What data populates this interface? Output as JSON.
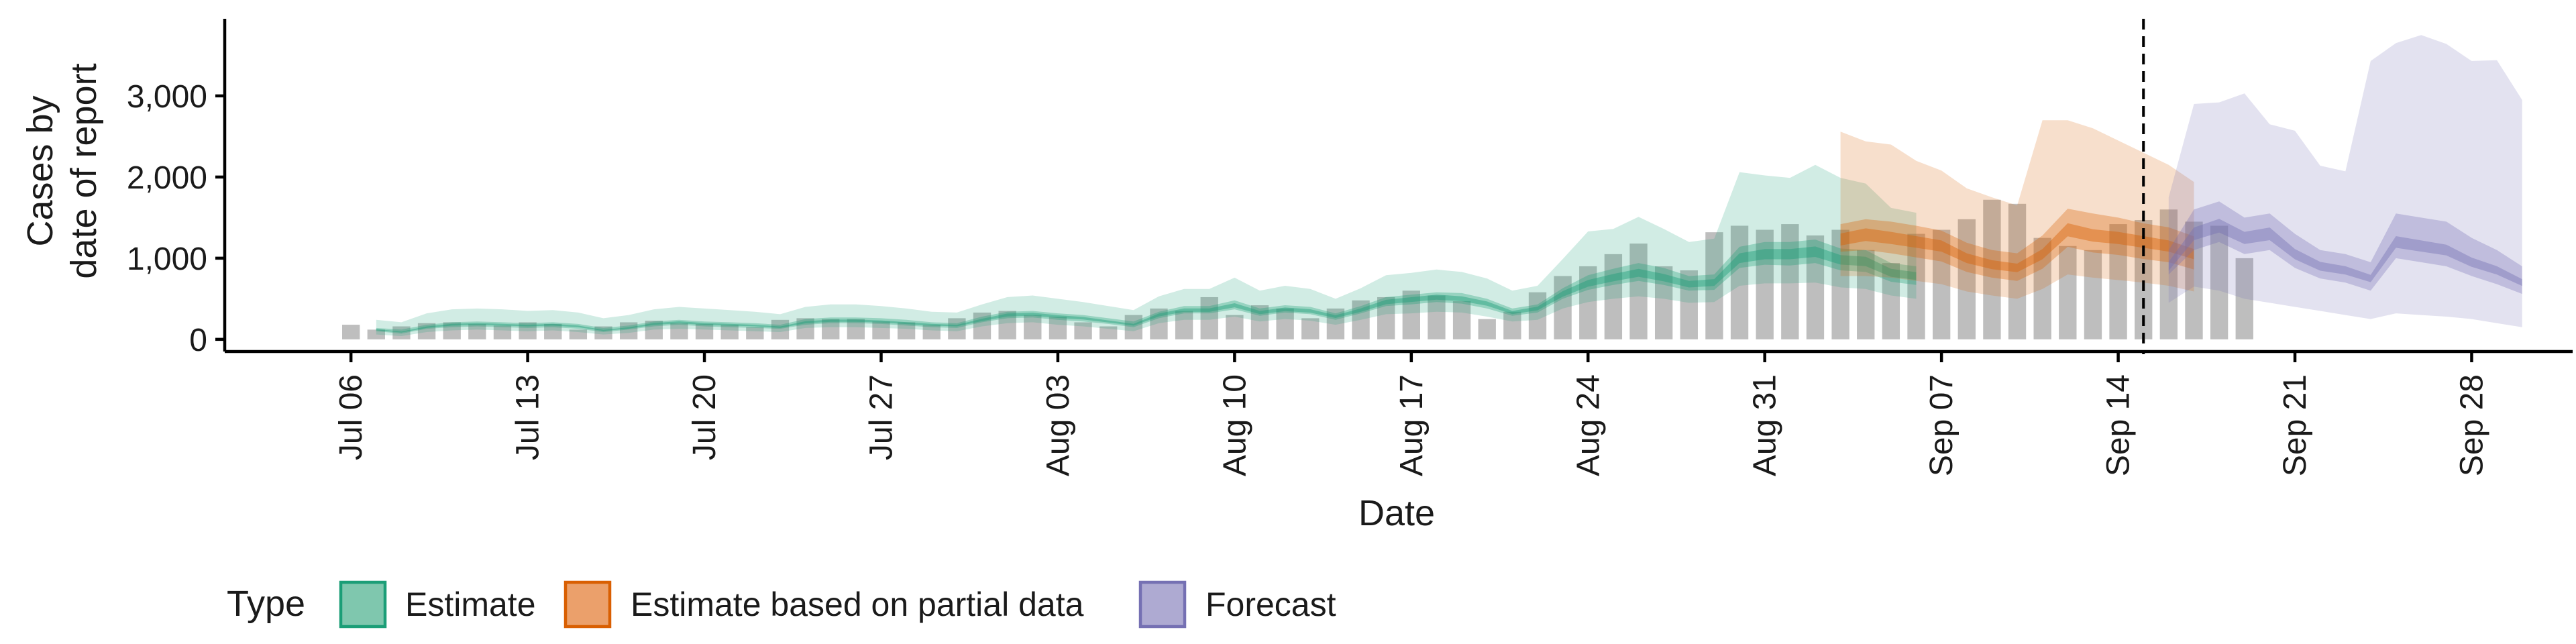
{
  "chart_data": {
    "type": "area",
    "xlabel": "Date",
    "ylabel_lines": [
      "Cases by",
      "date of report"
    ],
    "x_ticks": [
      "Jul 06",
      "Jul 13",
      "Jul 20",
      "Jul 27",
      "Aug 03",
      "Aug 10",
      "Aug 17",
      "Aug 24",
      "Aug 31",
      "Sep 07",
      "Sep 14",
      "Sep 21",
      "Sep 28"
    ],
    "x_range": [
      "2020-07-01",
      "2020-10-02"
    ],
    "y_ticks": [
      "0",
      "1,000",
      "2,000",
      "3,000"
    ],
    "y_tick_values": [
      0,
      1000,
      2000,
      3000
    ],
    "ylim": [
      -150,
      3950
    ],
    "forecast_start": "2020-09-15",
    "legend": {
      "title": "Type",
      "position": "bottom",
      "entries": [
        {
          "label": "Estimate",
          "fill": "#7fc7ae",
          "stroke": "#1b9e77"
        },
        {
          "label": "Estimate based on partial data",
          "fill": "#eba06b",
          "stroke": "#d95f02"
        },
        {
          "label": "Forecast",
          "fill": "#aeaad2",
          "stroke": "#7570b3"
        }
      ]
    },
    "colors": {
      "Estimate": "#1b9e77",
      "Estimate based on partial data": "#d95f02",
      "Forecast": "#7570b3",
      "observed_bars": "#b3b3b3"
    },
    "observed": {
      "start": "2020-07-06",
      "values": [
        180,
        120,
        160,
        200,
        210,
        190,
        170,
        210,
        190,
        120,
        160,
        210,
        230,
        200,
        190,
        180,
        150,
        240,
        260,
        250,
        250,
        220,
        210,
        180,
        260,
        330,
        350,
        300,
        280,
        210,
        160,
        300,
        380,
        350,
        520,
        300,
        420,
        380,
        260,
        380,
        480,
        520,
        600,
        540,
        470,
        250,
        340,
        580,
        780,
        900,
        1050,
        1180,
        900,
        850,
        1320,
        1400,
        1350,
        1420,
        1280,
        1350,
        1100,
        940,
        1300,
        1350,
        1480,
        1720,
        1670,
        1250,
        1150,
        1100,
        1420,
        1470,
        1600,
        1450,
        1400,
        1000
      ]
    },
    "series": [
      {
        "name": "Estimate",
        "start": "2020-07-07",
        "median": [
          120,
          90,
          150,
          180,
          190,
          180,
          170,
          180,
          160,
          110,
          140,
          190,
          210,
          190,
          180,
          170,
          150,
          210,
          230,
          230,
          220,
          200,
          180,
          170,
          240,
          300,
          310,
          280,
          260,
          220,
          180,
          300,
          360,
          360,
          420,
          330,
          370,
          350,
          280,
          360,
          460,
          490,
          520,
          500,
          440,
          330,
          380,
          560,
          690,
          760,
          820,
          760,
          680,
          700,
          1000,
          1050,
          1050,
          1080,
          980,
          960,
          820,
          780
        ],
        "inner": [
          [
            100,
            140
          ],
          [
            70,
            120
          ],
          [
            130,
            180
          ],
          [
            150,
            210
          ],
          [
            160,
            220
          ],
          [
            150,
            210
          ],
          [
            140,
            200
          ],
          [
            150,
            210
          ],
          [
            130,
            190
          ],
          [
            90,
            140
          ],
          [
            120,
            170
          ],
          [
            160,
            220
          ],
          [
            180,
            240
          ],
          [
            160,
            220
          ],
          [
            150,
            210
          ],
          [
            140,
            200
          ],
          [
            130,
            180
          ],
          [
            180,
            250
          ],
          [
            200,
            270
          ],
          [
            200,
            270
          ],
          [
            190,
            260
          ],
          [
            170,
            240
          ],
          [
            150,
            210
          ],
          [
            140,
            200
          ],
          [
            210,
            280
          ],
          [
            260,
            340
          ],
          [
            270,
            350
          ],
          [
            240,
            320
          ],
          [
            220,
            300
          ],
          [
            190,
            260
          ],
          [
            150,
            220
          ],
          [
            260,
            340
          ],
          [
            320,
            410
          ],
          [
            320,
            410
          ],
          [
            370,
            480
          ],
          [
            290,
            380
          ],
          [
            330,
            420
          ],
          [
            310,
            400
          ],
          [
            240,
            320
          ],
          [
            320,
            410
          ],
          [
            410,
            520
          ],
          [
            430,
            550
          ],
          [
            460,
            580
          ],
          [
            440,
            570
          ],
          [
            380,
            500
          ],
          [
            290,
            380
          ],
          [
            330,
            430
          ],
          [
            500,
            630
          ],
          [
            610,
            790
          ],
          [
            670,
            870
          ],
          [
            720,
            940
          ],
          [
            670,
            880
          ],
          [
            600,
            780
          ],
          [
            610,
            800
          ],
          [
            880,
            1140
          ],
          [
            920,
            1200
          ],
          [
            910,
            1200
          ],
          [
            940,
            1230
          ],
          [
            850,
            1120
          ],
          [
            830,
            1100
          ],
          [
            710,
            940
          ],
          [
            670,
            900
          ]
        ],
        "outer": [
          [
            60,
            240
          ],
          [
            40,
            210
          ],
          [
            90,
            320
          ],
          [
            110,
            370
          ],
          [
            120,
            380
          ],
          [
            110,
            370
          ],
          [
            100,
            350
          ],
          [
            110,
            360
          ],
          [
            90,
            330
          ],
          [
            60,
            260
          ],
          [
            80,
            300
          ],
          [
            120,
            370
          ],
          [
            130,
            400
          ],
          [
            120,
            380
          ],
          [
            110,
            360
          ],
          [
            100,
            340
          ],
          [
            90,
            310
          ],
          [
            140,
            400
          ],
          [
            150,
            430
          ],
          [
            150,
            430
          ],
          [
            140,
            410
          ],
          [
            130,
            380
          ],
          [
            110,
            340
          ],
          [
            100,
            330
          ],
          [
            160,
            430
          ],
          [
            200,
            520
          ],
          [
            210,
            540
          ],
          [
            180,
            500
          ],
          [
            160,
            460
          ],
          [
            130,
            410
          ],
          [
            100,
            360
          ],
          [
            200,
            530
          ],
          [
            240,
            620
          ],
          [
            240,
            620
          ],
          [
            280,
            760
          ],
          [
            220,
            600
          ],
          [
            250,
            660
          ],
          [
            230,
            620
          ],
          [
            180,
            500
          ],
          [
            240,
            630
          ],
          [
            310,
            790
          ],
          [
            320,
            820
          ],
          [
            340,
            860
          ],
          [
            330,
            830
          ],
          [
            280,
            750
          ],
          [
            220,
            600
          ],
          [
            240,
            660
          ],
          [
            380,
            990
          ],
          [
            460,
            1330
          ],
          [
            500,
            1360
          ],
          [
            530,
            1510
          ],
          [
            500,
            1360
          ],
          [
            450,
            1200
          ],
          [
            460,
            1240
          ],
          [
            660,
            2060
          ],
          [
            690,
            2020
          ],
          [
            690,
            1990
          ],
          [
            700,
            2150
          ],
          [
            640,
            1990
          ],
          [
            620,
            1920
          ],
          [
            540,
            1620
          ],
          [
            500,
            1560
          ]
        ]
      },
      {
        "name": "Estimate based on partial data",
        "start": "2020-09-03",
        "median": [
          1230,
          1290,
          1250,
          1200,
          1150,
          1000,
          920,
          880,
          1050,
          1350,
          1280,
          1250,
          1200,
          1150,
          1050
        ],
        "inner": [
          [
            1080,
            1420
          ],
          [
            1100,
            1480
          ],
          [
            1060,
            1450
          ],
          [
            1010,
            1400
          ],
          [
            960,
            1340
          ],
          [
            830,
            1190
          ],
          [
            760,
            1100
          ],
          [
            720,
            1060
          ],
          [
            870,
            1280
          ],
          [
            1140,
            1610
          ],
          [
            1070,
            1550
          ],
          [
            1040,
            1500
          ],
          [
            990,
            1430
          ],
          [
            950,
            1380
          ],
          [
            860,
            1270
          ]
        ],
        "outer": [
          [
            780,
            2560
          ],
          [
            780,
            2440
          ],
          [
            760,
            2400
          ],
          [
            720,
            2200
          ],
          [
            680,
            2080
          ],
          [
            590,
            1860
          ],
          [
            540,
            1750
          ],
          [
            500,
            1650
          ],
          [
            620,
            2700
          ],
          [
            800,
            2700
          ],
          [
            760,
            2600
          ],
          [
            730,
            2450
          ],
          [
            700,
            2300
          ],
          [
            660,
            2150
          ],
          [
            590,
            1940
          ]
        ]
      },
      {
        "name": "Forecast",
        "start": "2020-09-16",
        "median": [
          900,
          1300,
          1400,
          1250,
          1300,
          1050,
          900,
          850,
          750,
          1200,
          1150,
          1100,
          950,
          850,
          700
        ],
        "inner": [
          [
            800,
            1100
          ],
          [
            1100,
            1600
          ],
          [
            1200,
            1700
          ],
          [
            1050,
            1500
          ],
          [
            1100,
            1550
          ],
          [
            880,
            1300
          ],
          [
            750,
            1100
          ],
          [
            700,
            1050
          ],
          [
            600,
            950
          ],
          [
            1000,
            1550
          ],
          [
            950,
            1500
          ],
          [
            900,
            1450
          ],
          [
            780,
            1250
          ],
          [
            680,
            1100
          ],
          [
            560,
            900
          ]
        ],
        "outer": [
          [
            450,
            1750
          ],
          [
            650,
            2900
          ],
          [
            600,
            2920
          ],
          [
            500,
            3030
          ],
          [
            450,
            2650
          ],
          [
            400,
            2570
          ],
          [
            350,
            2140
          ],
          [
            300,
            2070
          ],
          [
            250,
            3430
          ],
          [
            320,
            3650
          ],
          [
            300,
            3750
          ],
          [
            280,
            3640
          ],
          [
            250,
            3430
          ],
          [
            200,
            3440
          ],
          [
            150,
            2950
          ]
        ]
      }
    ]
  }
}
